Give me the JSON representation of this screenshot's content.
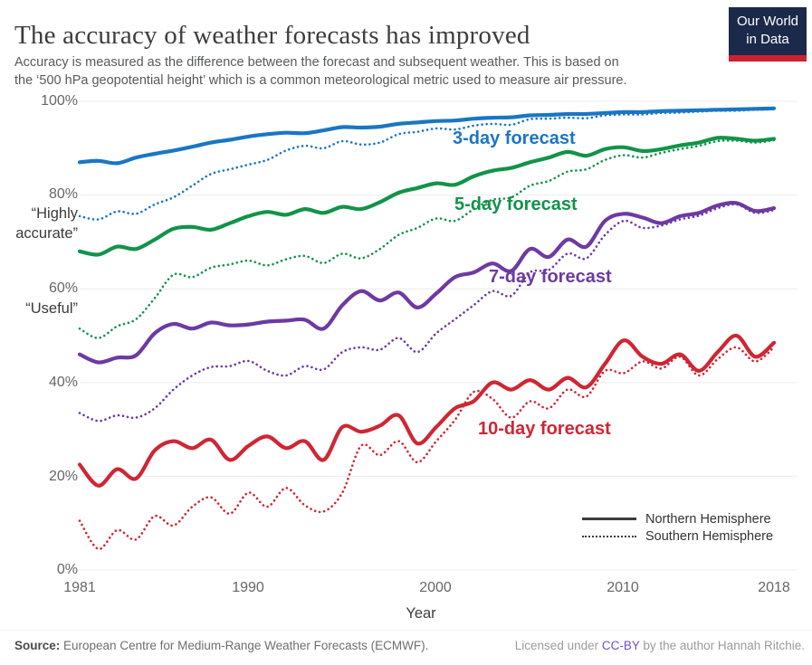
{
  "header": {
    "title": "The accuracy of weather forecasts has improved",
    "subtitle": "Accuracy is measured as the difference between the forecast and subsequent weather. This is based on\nthe ‘500 hPa geopotential height’ which is a common meteorological metric used to measure air pressure."
  },
  "logo": {
    "line1": "Our World",
    "line2": "in Data",
    "bg_color": "#1b2a4a",
    "bar_color": "#cf2030"
  },
  "footer": {
    "source_label": "Source:",
    "source_text": " European Centre for Medium-Range Weather Forecasts (ECMWF).",
    "license_prefix": "Licensed under ",
    "license_link": "CC-BY",
    "license_suffix": " by the author Hannah Ritchie."
  },
  "legend": {
    "position": "bottom-right",
    "items": [
      {
        "label": "Northern Hemisphere",
        "style": "solid"
      },
      {
        "label": "Southern Hemisphere",
        "style": "dotted"
      }
    ]
  },
  "chart_data": {
    "type": "line",
    "title": "The accuracy of weather forecasts has improved",
    "xlabel": "Year",
    "ylabel": "",
    "x_range": [
      1981,
      2018
    ],
    "y_range": [
      0,
      100
    ],
    "grid": "horizontal-only",
    "x_tick_labels": [
      "1981",
      "1990",
      "2000",
      "2010",
      "2018"
    ],
    "x_tick_values": [
      1981,
      1990,
      2000,
      2010,
      2018
    ],
    "y_tick_labels": [
      "100%",
      "80%",
      "60%",
      "40%",
      "20%",
      "0%"
    ],
    "y_tick_values": [
      100,
      80,
      60,
      40,
      20,
      0
    ],
    "y_annotations": [
      {
        "at": 80,
        "text": "“Highly\naccurate”"
      },
      {
        "at": 60,
        "text": "“Useful”"
      }
    ],
    "series_labels": [
      {
        "text": "3-day forecast",
        "color": "#1a76c4"
      },
      {
        "text": "5-day forecast",
        "color": "#12934a"
      },
      {
        "text": "7-day forecast",
        "color": "#6d3aa2"
      },
      {
        "text": "10-day forecast",
        "color": "#cf2634"
      }
    ],
    "series": [
      {
        "id": "3day-sh",
        "name": "3-day forecast — Southern Hemisphere",
        "color": "#1a76c4",
        "style": "dotted",
        "values": [
          75.5,
          74.8,
          76.5,
          76.0,
          78.0,
          79.5,
          82.0,
          84.5,
          85.5,
          86.5,
          87.5,
          89.5,
          90.5,
          90.0,
          91.5,
          90.8,
          91.2,
          93.0,
          93.5,
          94.2,
          94.0,
          94.8,
          95.2,
          95.0,
          96.2,
          96.3,
          96.5,
          96.4,
          97.0,
          97.2,
          97.2,
          97.5,
          97.6,
          97.8,
          98.0,
          98.0,
          98.2,
          98.3
        ]
      },
      {
        "id": "3day-nh",
        "name": "3-day forecast — Northern Hemisphere",
        "color": "#1a76c4",
        "style": "solid",
        "values": [
          87.0,
          87.3,
          86.8,
          88.0,
          88.8,
          89.5,
          90.3,
          91.2,
          91.8,
          92.5,
          93.0,
          93.3,
          93.2,
          93.8,
          94.5,
          94.4,
          94.6,
          95.2,
          95.5,
          95.8,
          95.9,
          96.3,
          96.5,
          96.6,
          97.0,
          97.1,
          97.3,
          97.3,
          97.5,
          97.7,
          97.7,
          97.9,
          98.0,
          98.1,
          98.2,
          98.3,
          98.4,
          98.5
        ]
      },
      {
        "id": "5day-sh",
        "name": "5-day forecast — Southern Hemisphere",
        "color": "#12934a",
        "style": "dotted",
        "values": [
          51.5,
          49.5,
          52.0,
          53.5,
          58.0,
          63.0,
          62.5,
          64.5,
          65.2,
          66.0,
          65.0,
          66.3,
          67.0,
          65.5,
          67.5,
          66.5,
          68.5,
          71.5,
          73.0,
          75.0,
          74.5,
          77.0,
          79.0,
          79.5,
          82.0,
          83.0,
          85.0,
          85.5,
          87.5,
          88.5,
          88.0,
          89.0,
          89.8,
          90.5,
          91.5,
          91.6,
          91.2,
          91.7
        ]
      },
      {
        "id": "5day-nh",
        "name": "5-day forecast — Northern Hemisphere",
        "color": "#12934a",
        "style": "solid",
        "values": [
          68.0,
          67.3,
          69.0,
          68.5,
          70.5,
          72.8,
          73.2,
          72.6,
          74.0,
          75.5,
          76.4,
          75.8,
          77.0,
          76.2,
          77.5,
          77.0,
          78.5,
          80.5,
          81.5,
          82.5,
          82.2,
          84.0,
          85.2,
          85.8,
          87.0,
          88.0,
          89.2,
          88.4,
          89.8,
          90.2,
          89.4,
          89.8,
          90.6,
          91.2,
          92.2,
          92.0,
          91.6,
          92.0
        ]
      },
      {
        "id": "7day-sh",
        "name": "7-day forecast — Southern Hemisphere",
        "color": "#6d3aa2",
        "style": "dotted",
        "values": [
          33.5,
          31.8,
          33.0,
          32.5,
          34.5,
          38.5,
          41.5,
          43.3,
          43.5,
          44.6,
          42.5,
          41.5,
          43.5,
          42.8,
          46.5,
          47.5,
          47.0,
          49.5,
          46.5,
          50.5,
          53.5,
          56.5,
          59.5,
          58.5,
          63.5,
          64.0,
          67.5,
          66.5,
          71.5,
          74.5,
          73.0,
          73.5,
          74.8,
          75.6,
          77.2,
          78.0,
          76.2,
          76.8
        ]
      },
      {
        "id": "7day-nh",
        "name": "7-day forecast — Northern Hemisphere",
        "color": "#6d3aa2",
        "style": "solid",
        "values": [
          46.0,
          44.3,
          45.3,
          45.8,
          50.5,
          52.5,
          51.5,
          52.8,
          52.2,
          52.4,
          53.0,
          53.2,
          53.4,
          51.5,
          56.5,
          59.5,
          57.5,
          59.2,
          56.0,
          59.0,
          62.5,
          63.5,
          65.4,
          63.8,
          68.5,
          66.8,
          70.5,
          69.0,
          74.5,
          76.0,
          75.2,
          74.0,
          75.5,
          76.2,
          77.8,
          78.3,
          76.6,
          77.2
        ]
      },
      {
        "id": "10day-sh",
        "name": "10-day forecast — Southern Hemisphere",
        "color": "#cf2634",
        "style": "dotted",
        "values": [
          10.5,
          4.5,
          8.5,
          6.5,
          11.5,
          9.5,
          13.5,
          15.5,
          12.0,
          16.5,
          13.5,
          17.5,
          13.8,
          12.5,
          16.5,
          26.5,
          24.5,
          27.5,
          23.0,
          27.5,
          32.0,
          38.0,
          36.5,
          32.5,
          36.0,
          34.5,
          38.5,
          37.0,
          42.5,
          42.0,
          44.5,
          43.0,
          45.5,
          41.5,
          45.0,
          47.5,
          44.5,
          47.5
        ]
      },
      {
        "id": "10day-nh",
        "name": "10-day forecast — Northern Hemisphere",
        "color": "#cf2634",
        "style": "solid",
        "values": [
          22.5,
          18.0,
          21.5,
          19.5,
          25.5,
          27.5,
          26.0,
          27.8,
          23.5,
          26.5,
          28.5,
          26.0,
          27.5,
          23.5,
          30.5,
          29.5,
          30.8,
          33.0,
          27.0,
          30.5,
          34.5,
          36.0,
          40.0,
          38.5,
          40.5,
          38.5,
          41.0,
          39.0,
          44.0,
          49.0,
          45.5,
          44.0,
          46.0,
          42.5,
          46.5,
          50.0,
          45.5,
          48.5
        ]
      }
    ]
  }
}
